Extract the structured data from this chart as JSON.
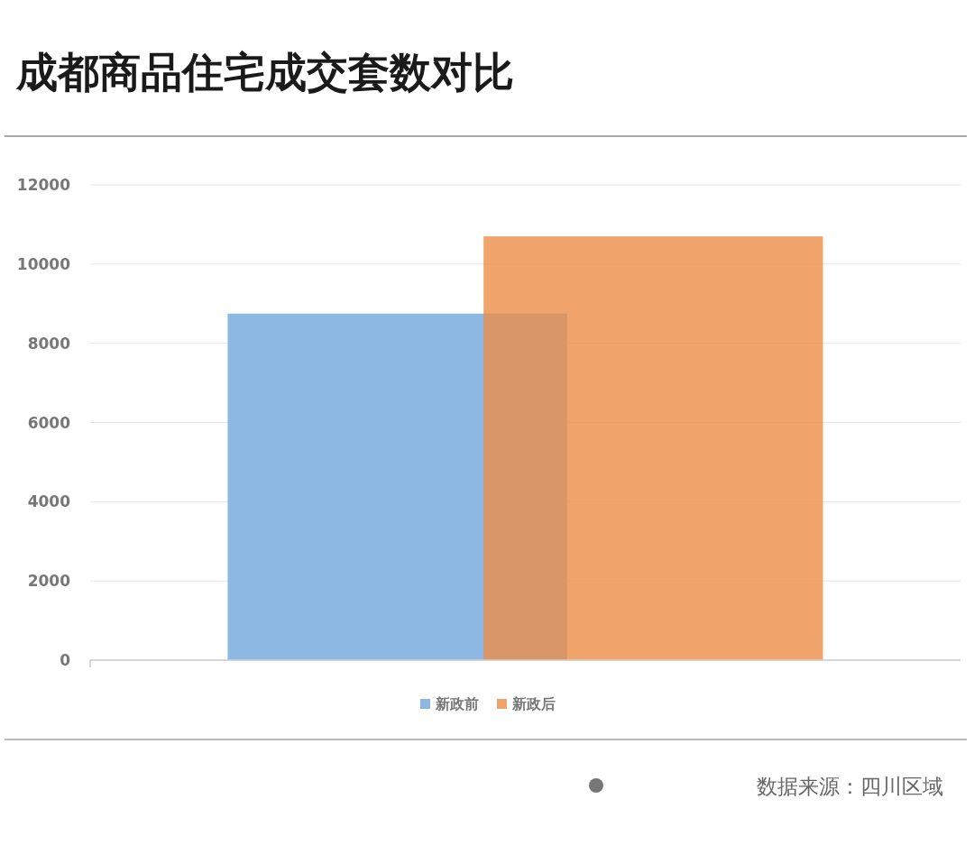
{
  "chart_data": {
    "type": "bar",
    "title": "成都商品住宅成交套数对比",
    "categories": [
      null
    ],
    "series": [
      {
        "name": "新政前",
        "color": "#8cb8e3",
        "values": [
          8750
        ]
      },
      {
        "name": "新政后",
        "color": "#f0a46c",
        "values": [
          10700
        ]
      }
    ],
    "ylim": [
      0,
      12000
    ],
    "yticks": [
      0,
      2000,
      4000,
      6000,
      8000,
      10000,
      12000
    ],
    "grid": "y",
    "legend": "bottom",
    "annotations": [
      "数据来源：四川区域"
    ]
  }
}
